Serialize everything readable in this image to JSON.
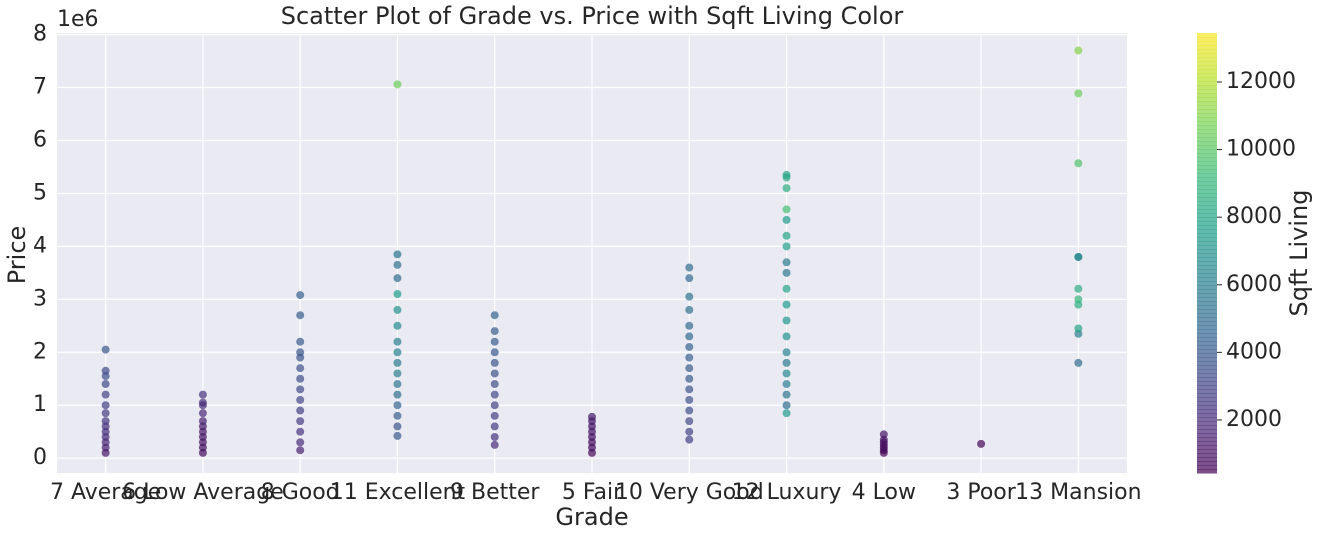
{
  "chart_data": {
    "type": "scatter",
    "title": "Scatter Plot of Grade vs. Price with Sqft Living Color",
    "x_label": "Grade",
    "y_label": "Price",
    "y_offset_label": "1e6",
    "categories": [
      "7 Average",
      "6 Low Average",
      "8 Good",
      "11 Excellent",
      "9 Better",
      "5 Fair",
      "10 Very Good",
      "12 Luxury",
      "4 Low",
      "3 Poor",
      "13 Mansion"
    ],
    "ylim": [
      -0.28,
      8.03
    ],
    "yticks": [
      0,
      1,
      2,
      3,
      4,
      5,
      6,
      7,
      8
    ],
    "grid": true,
    "colorbar": {
      "label": "Sqft Living",
      "lim": [
        430,
        13450
      ],
      "ticks": [
        2000,
        4000,
        6000,
        8000,
        10000,
        12000
      ],
      "colormap": "viridis",
      "alpha": 0.7
    },
    "x": [
      "7 Average",
      "7 Average",
      "7 Average",
      "7 Average",
      "7 Average",
      "7 Average",
      "7 Average",
      "7 Average",
      "7 Average",
      "7 Average",
      "7 Average",
      "7 Average",
      "7 Average",
      "7 Average",
      "6 Low Average",
      "6 Low Average",
      "6 Low Average",
      "6 Low Average",
      "6 Low Average",
      "6 Low Average",
      "6 Low Average",
      "6 Low Average",
      "6 Low Average",
      "6 Low Average",
      "6 Low Average",
      "8 Good",
      "8 Good",
      "8 Good",
      "8 Good",
      "8 Good",
      "8 Good",
      "8 Good",
      "8 Good",
      "8 Good",
      "8 Good",
      "8 Good",
      "8 Good",
      "8 Good",
      "8 Good",
      "11 Excellent",
      "11 Excellent",
      "11 Excellent",
      "11 Excellent",
      "11 Excellent",
      "11 Excellent",
      "11 Excellent",
      "11 Excellent",
      "11 Excellent",
      "11 Excellent",
      "11 Excellent",
      "11 Excellent",
      "11 Excellent",
      "11 Excellent",
      "11 Excellent",
      "11 Excellent",
      "11 Excellent",
      "9 Better",
      "9 Better",
      "9 Better",
      "9 Better",
      "9 Better",
      "9 Better",
      "9 Better",
      "9 Better",
      "9 Better",
      "9 Better",
      "9 Better",
      "9 Better",
      "9 Better",
      "5 Fair",
      "5 Fair",
      "5 Fair",
      "5 Fair",
      "5 Fair",
      "5 Fair",
      "5 Fair",
      "5 Fair",
      "10 Very Good",
      "10 Very Good",
      "10 Very Good",
      "10 Very Good",
      "10 Very Good",
      "10 Very Good",
      "10 Very Good",
      "10 Very Good",
      "10 Very Good",
      "10 Very Good",
      "10 Very Good",
      "10 Very Good",
      "10 Very Good",
      "10 Very Good",
      "10 Very Good",
      "10 Very Good",
      "12 Luxury",
      "12 Luxury",
      "12 Luxury",
      "12 Luxury",
      "12 Luxury",
      "12 Luxury",
      "12 Luxury",
      "12 Luxury",
      "12 Luxury",
      "12 Luxury",
      "12 Luxury",
      "12 Luxury",
      "12 Luxury",
      "12 Luxury",
      "12 Luxury",
      "12 Luxury",
      "12 Luxury",
      "12 Luxury",
      "12 Luxury",
      "12 Luxury",
      "4 Low",
      "4 Low",
      "4 Low",
      "4 Low",
      "4 Low",
      "4 Low",
      "4 Low",
      "3 Poor",
      "13 Mansion",
      "13 Mansion",
      "13 Mansion",
      "13 Mansion",
      "13 Mansion",
      "13 Mansion",
      "13 Mansion",
      "13 Mansion",
      "13 Mansion",
      "13 Mansion",
      "13 Mansion"
    ],
    "values": [
      0.1,
      0.2,
      0.3,
      0.4,
      0.5,
      0.6,
      0.7,
      0.85,
      1.0,
      1.2,
      1.4,
      1.55,
      1.65,
      2.05,
      0.1,
      0.2,
      0.3,
      0.4,
      0.5,
      0.6,
      0.7,
      0.85,
      1.0,
      1.05,
      1.2,
      0.15,
      0.3,
      0.5,
      0.7,
      0.9,
      1.1,
      1.3,
      1.5,
      1.7,
      1.9,
      2.0,
      2.2,
      2.7,
      3.08,
      0.42,
      0.6,
      0.8,
      1.0,
      1.2,
      1.4,
      1.6,
      1.8,
      2.0,
      2.2,
      2.5,
      2.8,
      3.1,
      3.4,
      3.65,
      3.85,
      7.06,
      0.25,
      0.4,
      0.6,
      0.8,
      1.0,
      1.2,
      1.4,
      1.6,
      1.8,
      2.0,
      2.2,
      2.4,
      2.7,
      0.1,
      0.2,
      0.3,
      0.4,
      0.5,
      0.6,
      0.7,
      0.78,
      0.35,
      0.5,
      0.7,
      0.9,
      1.1,
      1.3,
      1.5,
      1.7,
      1.9,
      2.1,
      2.3,
      2.5,
      2.8,
      3.05,
      3.4,
      3.6,
      0.85,
      1.0,
      1.2,
      1.4,
      1.6,
      1.8,
      2.0,
      2.3,
      2.6,
      2.9,
      3.2,
      3.5,
      3.7,
      4.0,
      4.2,
      4.5,
      4.7,
      5.1,
      5.3,
      5.35,
      0.1,
      0.15,
      0.2,
      0.25,
      0.3,
      0.35,
      0.45,
      0.27,
      1.8,
      2.35,
      2.45,
      2.9,
      3.0,
      3.2,
      3.8,
      3.8,
      5.57,
      6.89,
      7.7
    ],
    "sqft_living": [
      1200,
      1500,
      1700,
      1900,
      2100,
      2200,
      2400,
      2600,
      2800,
      3000,
      3200,
      3400,
      3300,
      3900,
      700,
      900,
      1000,
      1100,
      1200,
      1300,
      1500,
      1700,
      2000,
      2100,
      2200,
      1500,
      2000,
      2300,
      2600,
      2800,
      3100,
      3300,
      3400,
      3600,
      3800,
      3900,
      4000,
      4200,
      4400,
      4000,
      3800,
      4200,
      4500,
      5000,
      5500,
      6000,
      5800,
      6200,
      6000,
      6500,
      7000,
      7500,
      5000,
      5200,
      5400,
      10500,
      2000,
      2300,
      2600,
      2800,
      3000,
      3200,
      3400,
      3600,
      3800,
      4000,
      4100,
      4200,
      4500,
      600,
      700,
      800,
      900,
      1000,
      1100,
      1200,
      1300,
      2800,
      3000,
      3200,
      3400,
      3600,
      3800,
      4000,
      4200,
      4400,
      4500,
      4700,
      4900,
      5200,
      5400,
      4800,
      5000,
      7500,
      5000,
      5500,
      6000,
      6500,
      5800,
      6200,
      7000,
      7200,
      7500,
      8000,
      5500,
      5800,
      7800,
      8000,
      7500,
      9500,
      8500,
      8300,
      8000,
      500,
      600,
      700,
      800,
      900,
      1000,
      1100,
      600,
      5000,
      6000,
      8000,
      8500,
      9000,
      8500,
      6500,
      6500,
      9800,
      10500,
      11000
    ]
  }
}
